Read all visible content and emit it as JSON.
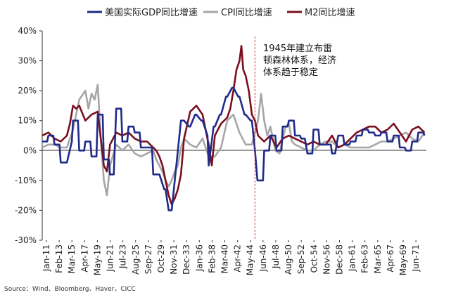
{
  "chart_data": {
    "type": "line",
    "title": "",
    "xlabel": "",
    "ylabel": "",
    "ylim": [
      -30,
      40
    ],
    "ytick_labels": [
      "40%",
      "30%",
      "20%",
      "10%",
      "0%",
      "-10%",
      "-20%",
      "-30%"
    ],
    "yticks": [
      40,
      30,
      20,
      10,
      0,
      -10,
      -20,
      -30
    ],
    "x_start": 1911.0,
    "x_end": 1973.3,
    "xtick_labels": [
      "Jan-11",
      "Feb-13",
      "Mar-15",
      "Apr-17",
      "May-19",
      "Jun-21",
      "Jul-23",
      "Aug-25",
      "Sep-27",
      "Oct-29",
      "Nov-31",
      "Dec-33",
      "Jan-36",
      "Feb-38",
      "Mar-40",
      "Apr-42",
      "May-44",
      "Jun-46",
      "Jul-48",
      "Aug-50",
      "Sep-52",
      "Oct-54",
      "Nov-56",
      "Dec-58",
      "Jan-61",
      "Feb-63",
      "Mar-65",
      "Apr-67",
      "May-69",
      "Jun-71"
    ],
    "annotation": {
      "x": 1945.5,
      "lines": [
        "1945年建立布雷",
        "顿森林体系，经济",
        "体系趋于稳定"
      ]
    },
    "series": [
      {
        "name": "美国实际GDP同比增速",
        "color": "#1f2a8a",
        "x": [
          1911.0,
          1911.8,
          1912.0,
          1912.8,
          1913.0,
          1913.8,
          1914.0,
          1914.6,
          1915.0,
          1915.8,
          1916.0,
          1916.8,
          1917.0,
          1917.8,
          1918.0,
          1918.8,
          1919.0,
          1919.8,
          1920.0,
          1920.8,
          1921.0,
          1921.8,
          1922.0,
          1922.6,
          1923.0,
          1923.8,
          1924.0,
          1924.8,
          1925.0,
          1925.8,
          1926.0,
          1926.8,
          1927.0,
          1927.8,
          1928.0,
          1928.8,
          1929.0,
          1929.8,
          1930.0,
          1930.8,
          1931.0,
          1931.5,
          1932.0,
          1932.5,
          1933.0,
          1933.5,
          1934.0,
          1934.8,
          1935.0,
          1935.8,
          1936.0,
          1936.8,
          1937.0,
          1937.8,
          1938.0,
          1938.8,
          1939.0,
          1939.8,
          1940.0,
          1940.8,
          1941.0,
          1941.8,
          1942.0,
          1942.8,
          1943.0,
          1943.8,
          1944.0,
          1944.8,
          1945.0,
          1945.5,
          1945.9,
          1946.0,
          1946.8,
          1947.0,
          1947.8,
          1948.0,
          1948.8,
          1949.0,
          1949.8,
          1950.0,
          1950.8,
          1951.0,
          1951.8,
          1952.0,
          1952.8,
          1953.0,
          1953.6,
          1954.0,
          1954.8,
          1955.0,
          1955.8,
          1956.0,
          1956.8,
          1957.0,
          1957.8,
          1958.0,
          1958.5,
          1959.0,
          1959.8,
          1960.0,
          1960.8,
          1961.0,
          1961.8,
          1962.0,
          1962.8,
          1963.0,
          1963.8,
          1964.0,
          1964.8,
          1965.0,
          1965.8,
          1966.0,
          1966.8,
          1967.0,
          1967.8,
          1968.0,
          1968.8,
          1969.0,
          1969.8,
          1970.0,
          1970.8,
          1971.0,
          1971.8,
          1972.0,
          1972.8,
          1973.0
        ],
        "values": [
          3,
          3,
          5,
          5,
          2,
          2,
          -4,
          -4,
          -4,
          3,
          10,
          10,
          0,
          0,
          3,
          3,
          -2,
          -2,
          12,
          12,
          -3,
          -3,
          -8,
          -8,
          14,
          14,
          3,
          3,
          8,
          8,
          6,
          6,
          1,
          1,
          1,
          1,
          -8,
          -8,
          -8,
          -13,
          -13,
          -20,
          -20,
          -10,
          0,
          10,
          10,
          8,
          8,
          12,
          12,
          10,
          10,
          5,
          -5,
          8,
          8,
          12,
          12,
          18,
          18,
          21,
          21,
          18,
          18,
          12,
          12,
          10,
          10,
          0,
          -10,
          -10,
          -10,
          0,
          0,
          5,
          5,
          0,
          0,
          8,
          8,
          10,
          10,
          5,
          5,
          4,
          4,
          -1,
          -1,
          7,
          7,
          2,
          2,
          2,
          2,
          -1,
          -1,
          5,
          5,
          2,
          2,
          3,
          3,
          5,
          5,
          7,
          7,
          6,
          6,
          5,
          5,
          6,
          6,
          3,
          3,
          5,
          5,
          1,
          1,
          0,
          0,
          3,
          3,
          6,
          6,
          5
        ]
      },
      {
        "name": "CPI同比增速",
        "color": "#a6a6a6",
        "x": [
          1911.0,
          1912.0,
          1913.0,
          1914.0,
          1915.0,
          1916.0,
          1917.0,
          1918.0,
          1918.5,
          1919.0,
          1919.5,
          1920.0,
          1920.5,
          1921.0,
          1921.5,
          1922.0,
          1923.0,
          1924.0,
          1925.0,
          1926.0,
          1927.0,
          1928.0,
          1929.0,
          1929.5,
          1930.0,
          1930.5,
          1931.0,
          1931.5,
          1932.0,
          1932.5,
          1933.0,
          1933.5,
          1934.0,
          1935.0,
          1936.0,
          1937.0,
          1938.0,
          1939.0,
          1940.0,
          1941.0,
          1942.0,
          1943.0,
          1944.0,
          1945.0,
          1946.0,
          1946.5,
          1947.0,
          1947.5,
          1948.0,
          1948.8,
          1949.5,
          1950.0,
          1950.5,
          1951.0,
          1951.5,
          1952.0,
          1953.0,
          1954.0,
          1955.0,
          1956.0,
          1957.0,
          1958.0,
          1959.0,
          1960.0,
          1961.0,
          1962.0,
          1963.0,
          1964.0,
          1965.0,
          1966.0,
          1967.0,
          1968.0,
          1969.0,
          1970.0,
          1971.0,
          1972.0,
          1973.0
        ],
        "values": [
          1,
          2,
          2,
          1,
          1,
          7,
          17,
          20,
          14,
          19,
          17,
          22,
          4,
          -10,
          -15,
          -5,
          2,
          0,
          2,
          -1,
          -2,
          -1,
          0,
          -3,
          -5,
          -7,
          -10,
          -12,
          -10,
          -7,
          -5,
          1,
          4,
          2,
          1,
          4,
          -2,
          -2,
          1,
          10,
          12,
          6,
          2,
          2,
          10,
          19,
          10,
          5,
          8,
          0,
          -1,
          4,
          8,
          9,
          3,
          2,
          1,
          0,
          0,
          2,
          3,
          3,
          1,
          2,
          1,
          1,
          1,
          1,
          2,
          3,
          3,
          4,
          5,
          6,
          4,
          3,
          6
        ]
      },
      {
        "name": "M2同比增速",
        "color": "#7a0f1e",
        "x": [
          1911.0,
          1912.0,
          1913.0,
          1914.0,
          1915.0,
          1915.5,
          1916.0,
          1916.5,
          1917.0,
          1918.0,
          1919.0,
          1920.0,
          1921.0,
          1921.5,
          1922.0,
          1923.0,
          1924.0,
          1925.0,
          1926.0,
          1927.0,
          1928.0,
          1929.0,
          1929.5,
          1930.0,
          1930.5,
          1931.0,
          1931.5,
          1932.0,
          1932.5,
          1933.0,
          1933.5,
          1934.0,
          1935.0,
          1936.0,
          1937.0,
          1938.0,
          1938.5,
          1939.0,
          1940.0,
          1941.0,
          1941.5,
          1942.0,
          1942.5,
          1943.0,
          1943.3,
          1943.6,
          1944.0,
          1944.5,
          1945.0,
          1945.5,
          1946.0,
          1947.0,
          1948.0,
          1949.0,
          1950.0,
          1951.0,
          1952.0,
          1953.0,
          1954.0,
          1955.0,
          1956.0,
          1957.0,
          1958.0,
          1959.0,
          1960.0,
          1961.0,
          1962.0,
          1963.0,
          1964.0,
          1965.0,
          1966.0,
          1967.0,
          1968.0,
          1969.0,
          1970.0,
          1971.0,
          1972.0,
          1973.0
        ],
        "values": [
          5,
          6,
          4,
          3,
          5,
          9,
          15,
          14,
          15,
          10,
          12,
          13,
          -5,
          -7,
          2,
          6,
          5,
          6,
          4,
          3,
          3,
          1,
          0,
          -2,
          -5,
          -10,
          -15,
          -18,
          -16,
          -13,
          -8,
          4,
          13,
          15,
          12,
          2,
          -5,
          5,
          9,
          11,
          14,
          20,
          27,
          30,
          35,
          27,
          25,
          20,
          12,
          10,
          5,
          3,
          5,
          1,
          4,
          5,
          4,
          3,
          2,
          3,
          2,
          2,
          5,
          1,
          2,
          4,
          6,
          7,
          8,
          8,
          6,
          7,
          9,
          6,
          3,
          7,
          8,
          6
        ]
      }
    ]
  },
  "legend": [
    {
      "label": "美国实际GDP同比增速",
      "color": "#1f2a8a"
    },
    {
      "label": "CPI同比增速",
      "color": "#a6a6a6"
    },
    {
      "label": "M2同比增速",
      "color": "#7a0f1e"
    }
  ],
  "source_note": "Source：Wind、Bloomberg、Haver，CICC"
}
